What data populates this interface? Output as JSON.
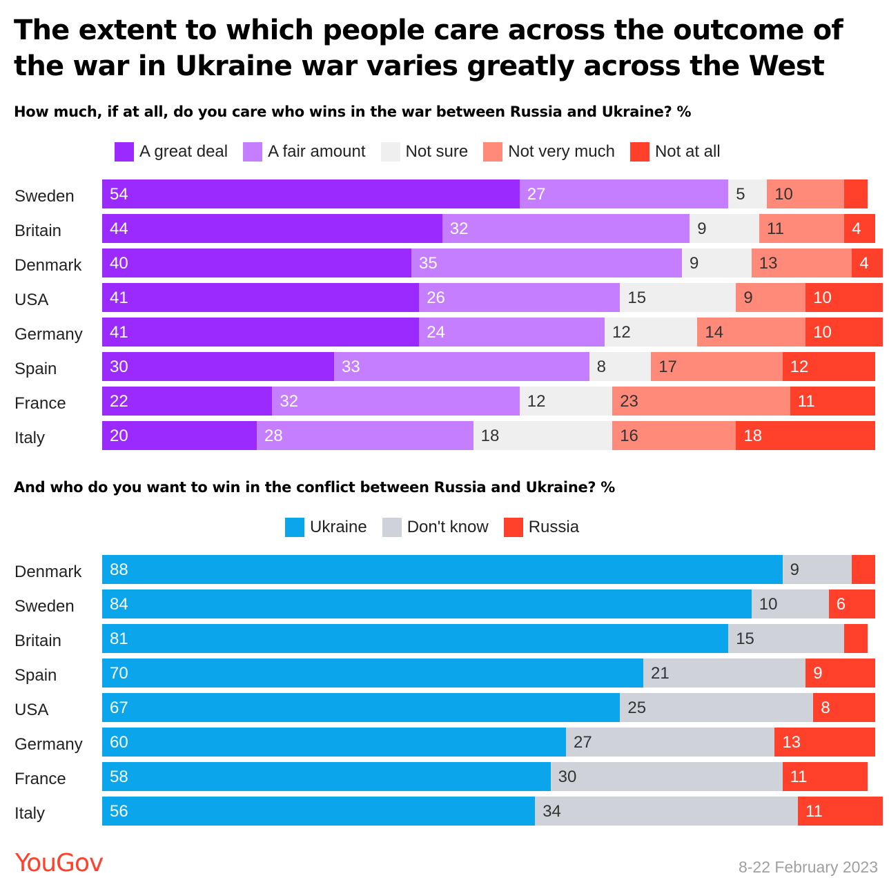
{
  "title": "The extent to which people care across the outcome of the war in Ukraine war varies greatly across the West",
  "brand": "YouGov",
  "date": "8-22 February 2023",
  "chart_data": [
    {
      "type": "bar",
      "orientation": "horizontal-stacked",
      "title": "How much, if at all, do you care who wins in the war between Russia and Ukraine? %",
      "categories": [
        "Sweden",
        "Britain",
        "Denmark",
        "USA",
        "Germany",
        "Spain",
        "France",
        "Italy"
      ],
      "series": [
        {
          "name": "A great deal",
          "color": "#9b2aff",
          "label_color": "#ffffff",
          "values": [
            54,
            44,
            40,
            41,
            41,
            30,
            22,
            20
          ]
        },
        {
          "name": "A fair amount",
          "color": "#c47eff",
          "label_color": "#ffffff",
          "values": [
            27,
            32,
            35,
            26,
            24,
            33,
            32,
            28
          ]
        },
        {
          "name": "Not sure",
          "color": "#efefef",
          "label_color": "#333333",
          "values": [
            5,
            9,
            9,
            15,
            12,
            8,
            12,
            18
          ]
        },
        {
          "name": "Not very much",
          "color": "#ff8a7a",
          "label_color": "#333333",
          "values": [
            10,
            11,
            13,
            9,
            14,
            17,
            23,
            16
          ]
        },
        {
          "name": "Not at all",
          "color": "#ff412c",
          "label_color": "#ffffff",
          "values": [
            3,
            4,
            4,
            10,
            10,
            12,
            11,
            18
          ]
        }
      ],
      "hidden_labels": [
        [
          0,
          4
        ]
      ],
      "xlim": [
        0,
        100
      ]
    },
    {
      "type": "bar",
      "orientation": "horizontal-stacked",
      "title": "And who do you want to win in the conflict between Russia and Ukraine? %",
      "categories": [
        "Denmark",
        "Sweden",
        "Britain",
        "Spain",
        "USA",
        "Germany",
        "France",
        "Italy"
      ],
      "series": [
        {
          "name": "Ukraine",
          "color": "#0aa5eb",
          "label_color": "#ffffff",
          "values": [
            88,
            84,
            81,
            70,
            67,
            60,
            58,
            56
          ]
        },
        {
          "name": "Don't know",
          "color": "#d0d2d9",
          "label_color": "#333333",
          "values": [
            9,
            10,
            15,
            21,
            25,
            27,
            30,
            34
          ]
        },
        {
          "name": "Russia",
          "color": "#ff412c",
          "label_color": "#ffffff",
          "values": [
            3,
            6,
            3,
            9,
            8,
            13,
            11,
            11
          ]
        }
      ],
      "hidden_labels": [
        [
          0,
          2
        ],
        [
          2,
          2
        ]
      ],
      "xlim": [
        0,
        100
      ]
    }
  ]
}
